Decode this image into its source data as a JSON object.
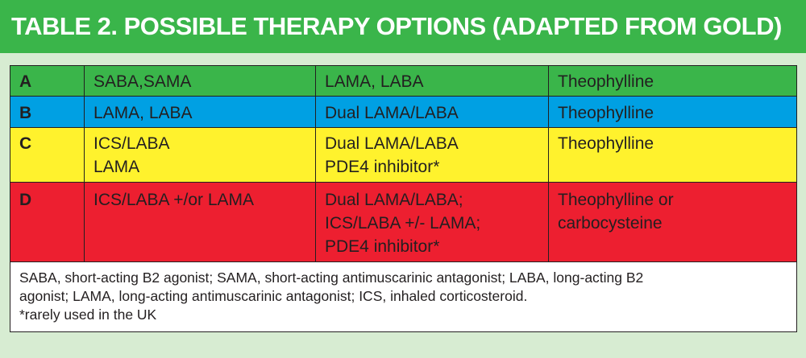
{
  "title": "TABLE 2. POSSIBLE THERAPY OPTIONS (ADAPTED FROM GOLD)",
  "colors": {
    "header": "#3ab54a",
    "page_background": "#d7ecd2",
    "grade_a": "#3ab54a",
    "grade_b": "#00a0e3",
    "grade_c": "#fff22d",
    "grade_d": "#ed1f30",
    "footnote_background": "#ffffff"
  },
  "rows": [
    {
      "grade": "A",
      "option1": "SABA,SAMA",
      "option2": "LAMA, LABA",
      "option3": "Theophylline"
    },
    {
      "grade": "B",
      "option1": "LAMA, LABA",
      "option2": "Dual LAMA/LABA",
      "option3": "Theophylline"
    },
    {
      "grade": "C",
      "option1": "ICS/LABA\nLAMA",
      "option2": "Dual LAMA/LABA\nPDE4 inhibitor*",
      "option3": "Theophylline"
    },
    {
      "grade": "D",
      "option1": "ICS/LABA +/or LAMA",
      "option2": "Dual LAMA/LABA;\nICS/LABA +/- LAMA;\nPDE4 inhibitor*",
      "option3": "Theophylline or\ncarbocysteine"
    }
  ],
  "footnote": {
    "abbreviations": "SABA, short-acting B2 agonist; SAMA, short-acting antimuscarinic antagonist; LABA, long-acting B2\nagonist; LAMA, long-acting antimuscarinic antagonist; ICS, inhaled corticosteroid.",
    "note": "*rarely used in the UK"
  }
}
